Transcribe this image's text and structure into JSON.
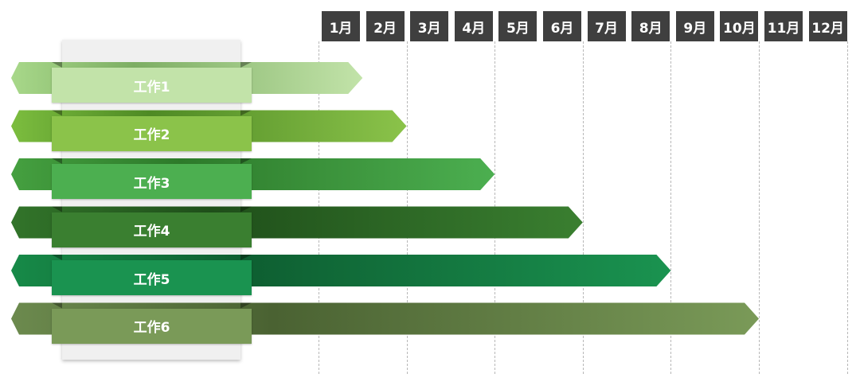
{
  "months": [
    "1月",
    "2月",
    "3月",
    "4月",
    "5月",
    "6月",
    "7月",
    "8月",
    "9月",
    "10月",
    "11月",
    "12月"
  ],
  "tasks": [
    {
      "label": "工作1",
      "end_month": 1,
      "color": "#a8d88a",
      "light": "#c2e3a9",
      "dark": "#7dae63"
    },
    {
      "label": "工作2",
      "end_month": 2,
      "color": "#7cbd3f",
      "light": "#8bc34a",
      "dark": "#4e8a24"
    },
    {
      "label": "工作3",
      "end_month": 4,
      "color": "#45a040",
      "light": "#4caf50",
      "dark": "#2d7a2a"
    },
    {
      "label": "工作4",
      "end_month": 6,
      "color": "#32742a",
      "light": "#3a7f30",
      "dark": "#1f4f1a"
    },
    {
      "label": "工作5",
      "end_month": 8,
      "color": "#178a48",
      "light": "#1a9350",
      "dark": "#0e5e31"
    },
    {
      "label": "工作6",
      "end_month": 10,
      "color": "#6c8a4e",
      "light": "#7a9a58",
      "dark": "#4a6232"
    }
  ]
}
